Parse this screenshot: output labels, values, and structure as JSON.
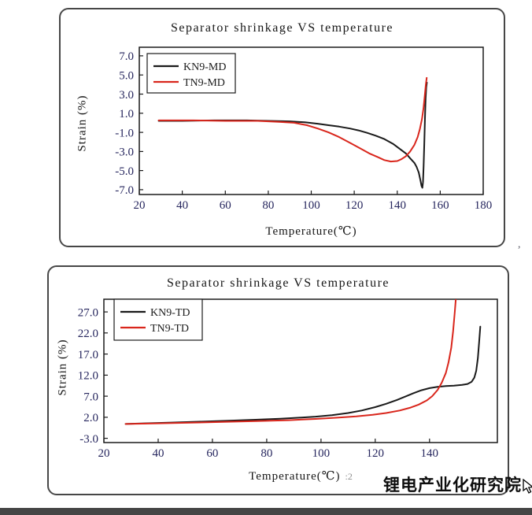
{
  "page": {
    "background": "#ffffff",
    "footer_bar_color": "#454545"
  },
  "watermark": {
    "text": "锂电产业化研究院"
  },
  "stray_marks": {
    "right_mark": ",",
    "xlabel_suffix": ":2"
  },
  "chart_data": [
    {
      "type": "line",
      "title": "Separator shrinkage VS temperature",
      "xlabel": "Temperature(℃)",
      "ylabel": "Strain (%)",
      "grid": false,
      "legend_position": "top-left",
      "xlim": [
        20,
        180
      ],
      "ylim": [
        -7.5,
        7.9
      ],
      "xticks": [
        {
          "value": 20,
          "label": "20"
        },
        {
          "value": 40,
          "label": "40"
        },
        {
          "value": 60,
          "label": "60"
        },
        {
          "value": 80,
          "label": "80"
        },
        {
          "value": 100,
          "label": "100"
        },
        {
          "value": 120,
          "label": "120"
        },
        {
          "value": 140,
          "label": "140"
        },
        {
          "value": 160,
          "label": "160"
        },
        {
          "value": 180,
          "label": "180"
        }
      ],
      "yticks": [
        {
          "value": 7,
          "label": "7.0"
        },
        {
          "value": 5,
          "label": "5.0"
        },
        {
          "value": 3,
          "label": "3.0"
        },
        {
          "value": 1,
          "label": "1.0"
        },
        {
          "value": -1,
          "label": "-1.0"
        },
        {
          "value": -3,
          "label": "-3.0"
        },
        {
          "value": -5,
          "label": "-5.0"
        },
        {
          "value": -7,
          "label": "-7.0"
        }
      ],
      "series": [
        {
          "name": "KN9-MD",
          "color": "#1a1a1a",
          "points": [
            [
              29,
              0.2
            ],
            [
              40,
              0.2
            ],
            [
              55,
              0.25
            ],
            [
              70,
              0.25
            ],
            [
              80,
              0.2
            ],
            [
              90,
              0.15
            ],
            [
              97,
              0.05
            ],
            [
              103,
              -0.1
            ],
            [
              108,
              -0.25
            ],
            [
              113,
              -0.4
            ],
            [
              118,
              -0.6
            ],
            [
              122,
              -0.8
            ],
            [
              126,
              -1.05
            ],
            [
              130,
              -1.35
            ],
            [
              134,
              -1.7
            ],
            [
              138,
              -2.2
            ],
            [
              141,
              -2.7
            ],
            [
              144,
              -3.2
            ],
            [
              146,
              -3.7
            ],
            [
              148,
              -4.2
            ],
            [
              149,
              -4.6
            ],
            [
              150,
              -5.2
            ],
            [
              150.8,
              -6.0
            ],
            [
              151.3,
              -6.6
            ],
            [
              151.7,
              -6.8
            ],
            [
              152,
              -6.2
            ],
            [
              152.3,
              -4.5
            ],
            [
              152.6,
              -2.0
            ],
            [
              152.9,
              0.5
            ],
            [
              153.2,
              2.5
            ],
            [
              153.5,
              3.7
            ],
            [
              153.8,
              4.2
            ]
          ]
        },
        {
          "name": "TN9-MD",
          "color": "#d9261c",
          "points": [
            [
              29,
              0.25
            ],
            [
              45,
              0.25
            ],
            [
              60,
              0.2
            ],
            [
              75,
              0.2
            ],
            [
              85,
              0.1
            ],
            [
              92,
              0.0
            ],
            [
              98,
              -0.25
            ],
            [
              103,
              -0.6
            ],
            [
              108,
              -1.0
            ],
            [
              113,
              -1.5
            ],
            [
              118,
              -2.1
            ],
            [
              123,
              -2.7
            ],
            [
              127,
              -3.2
            ],
            [
              131,
              -3.6
            ],
            [
              134,
              -3.9
            ],
            [
              137,
              -4.05
            ],
            [
              140,
              -4.0
            ],
            [
              142,
              -3.8
            ],
            [
              144,
              -3.5
            ],
            [
              146,
              -3.0
            ],
            [
              148,
              -2.3
            ],
            [
              149.5,
              -1.5
            ],
            [
              150.5,
              -0.7
            ],
            [
              151.5,
              0.4
            ],
            [
              152.2,
              1.5
            ],
            [
              152.8,
              2.8
            ],
            [
              153.3,
              4.0
            ],
            [
              153.7,
              4.7
            ]
          ]
        }
      ]
    },
    {
      "type": "line",
      "title": "Separator shrinkage VS temperature",
      "xlabel": "Temperature(℃)",
      "ylabel": "Strain (%)",
      "grid": false,
      "legend_position": "top-left",
      "xlim": [
        20,
        165
      ],
      "ylim": [
        -4,
        30
      ],
      "xticks": [
        {
          "value": 20,
          "label": "20"
        },
        {
          "value": 40,
          "label": "40"
        },
        {
          "value": 60,
          "label": "60"
        },
        {
          "value": 80,
          "label": "80"
        },
        {
          "value": 100,
          "label": "100"
        },
        {
          "value": 120,
          "label": "120"
        },
        {
          "value": 140,
          "label": "140"
        }
      ],
      "yticks": [
        {
          "value": 27,
          "label": "27.0"
        },
        {
          "value": 22,
          "label": "22.0"
        },
        {
          "value": 17,
          "label": "17.0"
        },
        {
          "value": 12,
          "label": "12.0"
        },
        {
          "value": 7,
          "label": "7.0"
        },
        {
          "value": 2,
          "label": "2.0"
        },
        {
          "value": -3,
          "label": "-3.0"
        }
      ],
      "series": [
        {
          "name": "KN9-TD",
          "color": "#1a1a1a",
          "points": [
            [
              28,
              0.4
            ],
            [
              35,
              0.55
            ],
            [
              45,
              0.75
            ],
            [
              55,
              0.95
            ],
            [
              65,
              1.15
            ],
            [
              75,
              1.4
            ],
            [
              85,
              1.65
            ],
            [
              92,
              1.9
            ],
            [
              98,
              2.15
            ],
            [
              104,
              2.5
            ],
            [
              110,
              3.0
            ],
            [
              115,
              3.6
            ],
            [
              120,
              4.4
            ],
            [
              124,
              5.2
            ],
            [
              128,
              6.1
            ],
            [
              131,
              6.9
            ],
            [
              134,
              7.7
            ],
            [
              137,
              8.4
            ],
            [
              140,
              8.9
            ],
            [
              143,
              9.2
            ],
            [
              146,
              9.4
            ],
            [
              149,
              9.5
            ],
            [
              152,
              9.7
            ],
            [
              154,
              9.9
            ],
            [
              155.5,
              10.4
            ],
            [
              156.5,
              11.4
            ],
            [
              157.2,
              13.0
            ],
            [
              157.8,
              16.0
            ],
            [
              158.3,
              20.0
            ],
            [
              158.7,
              23.5
            ]
          ]
        },
        {
          "name": "TN9-TD",
          "color": "#d9261c",
          "points": [
            [
              28,
              0.4
            ],
            [
              40,
              0.55
            ],
            [
              52,
              0.7
            ],
            [
              64,
              0.9
            ],
            [
              76,
              1.1
            ],
            [
              88,
              1.3
            ],
            [
              98,
              1.6
            ],
            [
              106,
              1.9
            ],
            [
              113,
              2.2
            ],
            [
              119,
              2.6
            ],
            [
              124,
              3.0
            ],
            [
              129,
              3.6
            ],
            [
              133,
              4.3
            ],
            [
              136,
              5.0
            ],
            [
              139,
              6.0
            ],
            [
              141,
              7.0
            ],
            [
              143,
              8.5
            ],
            [
              144.5,
              10.2
            ],
            [
              146,
              12.5
            ],
            [
              147,
              15.0
            ],
            [
              148,
              18.5
            ],
            [
              148.7,
              22.5
            ],
            [
              149.3,
              27.0
            ],
            [
              149.8,
              31.0
            ]
          ]
        }
      ]
    }
  ]
}
